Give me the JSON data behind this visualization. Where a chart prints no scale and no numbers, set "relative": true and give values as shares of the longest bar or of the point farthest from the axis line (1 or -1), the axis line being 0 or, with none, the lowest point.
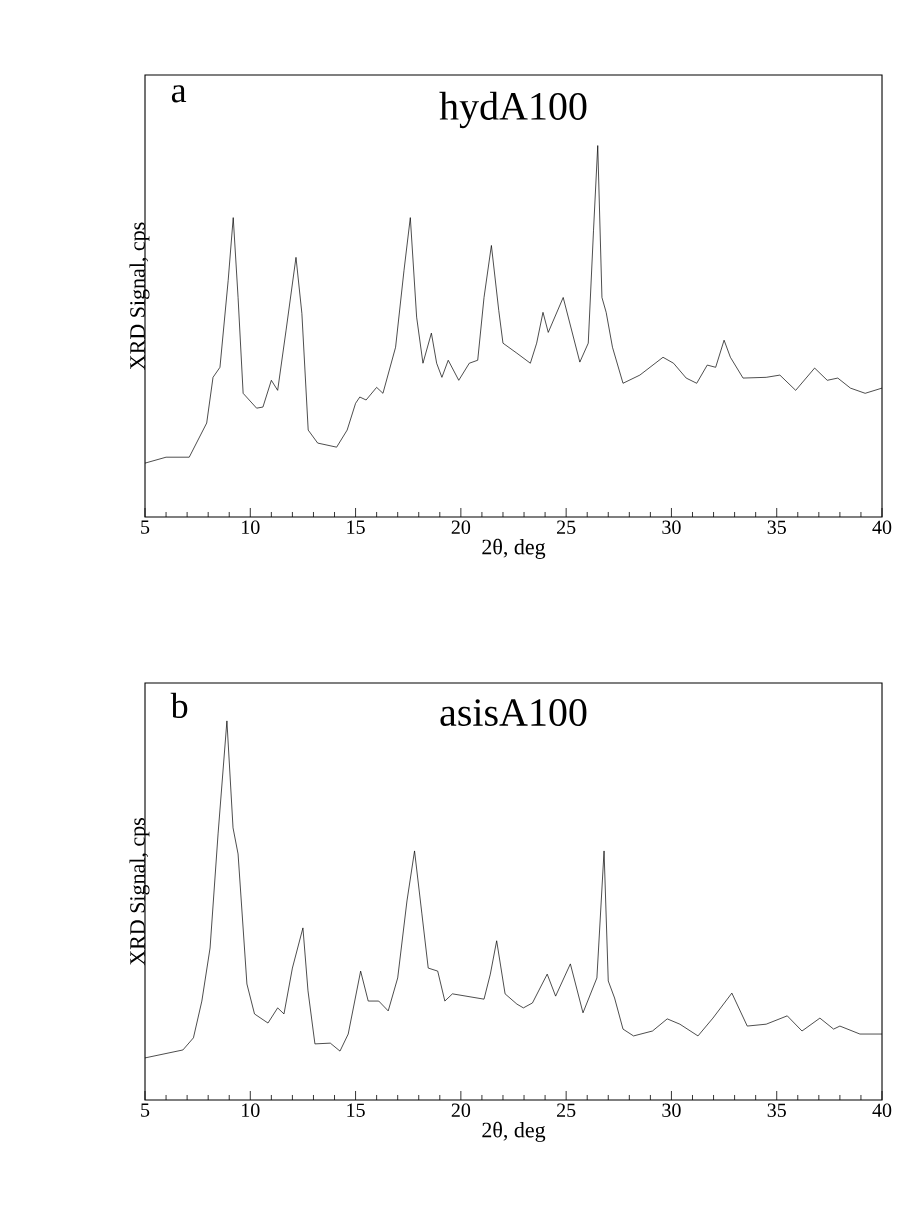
{
  "chart_data": [
    {
      "type": "line",
      "title": "hydA100",
      "xlabel": "2θ, deg",
      "ylabel": "XRD Signal, cps",
      "annotations": [
        "a"
      ],
      "relative": true,
      "color": "#000000",
      "xlim": [
        5,
        40
      ],
      "xticks": [
        5,
        10,
        15,
        20,
        25,
        30,
        35,
        40
      ],
      "x": [
        5.0,
        6.0,
        7.1,
        7.93,
        8.23,
        8.56,
        8.95,
        9.19,
        9.42,
        9.66,
        10.3,
        10.6,
        11.0,
        11.3,
        11.7,
        12.17,
        12.45,
        12.75,
        13.2,
        14.1,
        14.6,
        15.0,
        15.2,
        15.5,
        16.0,
        16.3,
        16.9,
        17.3,
        17.6,
        17.9,
        18.2,
        18.6,
        18.85,
        19.1,
        19.4,
        19.9,
        20.4,
        20.8,
        21.1,
        21.45,
        21.8,
        22.0,
        22.66,
        23.3,
        23.6,
        23.9,
        24.15,
        24.86,
        25.65,
        26.05,
        26.3,
        26.5,
        26.7,
        26.9,
        27.2,
        27.7,
        28.5,
        29.6,
        30.1,
        30.7,
        31.2,
        31.7,
        32.1,
        32.5,
        32.8,
        33.4,
        34.5,
        35.15,
        35.9,
        36.8,
        37.4,
        37.9,
        38.5,
        39.2,
        40.0
      ],
      "values": [
        0.145,
        0.161,
        0.161,
        0.253,
        0.376,
        0.403,
        0.637,
        0.806,
        0.591,
        0.333,
        0.293,
        0.296,
        0.368,
        0.341,
        0.503,
        0.699,
        0.548,
        0.234,
        0.199,
        0.188,
        0.234,
        0.306,
        0.323,
        0.315,
        0.349,
        0.333,
        0.457,
        0.664,
        0.806,
        0.538,
        0.414,
        0.495,
        0.414,
        0.376,
        0.422,
        0.368,
        0.414,
        0.422,
        0.591,
        0.731,
        0.556,
        0.468,
        0.441,
        0.414,
        0.468,
        0.551,
        0.497,
        0.591,
        0.417,
        0.468,
        0.772,
        1.0,
        0.591,
        0.551,
        0.457,
        0.36,
        0.382,
        0.43,
        0.414,
        0.374,
        0.36,
        0.409,
        0.403,
        0.476,
        0.43,
        0.374,
        0.376,
        0.382,
        0.341,
        0.401,
        0.368,
        0.374,
        0.347,
        0.333,
        0.347
      ]
    },
    {
      "type": "line",
      "title": "asisA100",
      "xlabel": "2θ, deg",
      "ylabel": "XRD Signal, cps",
      "annotations": [
        "b"
      ],
      "relative": true,
      "color": "#000000",
      "xlim": [
        5,
        40
      ],
      "xticks": [
        5,
        10,
        15,
        20,
        25,
        30,
        35,
        40
      ],
      "x": [
        5.0,
        6.8,
        7.3,
        7.7,
        8.09,
        8.47,
        8.89,
        9.18,
        9.42,
        9.84,
        10.2,
        10.84,
        11.3,
        11.6,
        12.0,
        12.5,
        12.74,
        13.07,
        13.8,
        14.26,
        14.65,
        15.24,
        15.6,
        16.1,
        16.55,
        17.0,
        17.44,
        17.8,
        18.15,
        18.45,
        18.9,
        19.24,
        19.6,
        21.1,
        21.4,
        21.7,
        22.1,
        22.66,
        22.97,
        23.4,
        24.1,
        24.5,
        25.2,
        25.8,
        26.46,
        26.8,
        27.0,
        27.3,
        27.7,
        28.2,
        29.1,
        29.8,
        30.4,
        31.26,
        31.97,
        32.87,
        33.6,
        34.5,
        35.5,
        36.2,
        37.05,
        37.7,
        38.0,
        38.95,
        40.0
      ],
      "values": [
        0.111,
        0.132,
        0.164,
        0.261,
        0.401,
        0.702,
        1.0,
        0.718,
        0.649,
        0.306,
        0.227,
        0.203,
        0.243,
        0.227,
        0.348,
        0.454,
        0.288,
        0.148,
        0.15,
        0.129,
        0.174,
        0.34,
        0.261,
        0.261,
        0.235,
        0.322,
        0.525,
        0.657,
        0.491,
        0.348,
        0.34,
        0.261,
        0.28,
        0.266,
        0.332,
        0.42,
        0.28,
        0.253,
        0.243,
        0.256,
        0.332,
        0.274,
        0.359,
        0.23,
        0.322,
        0.657,
        0.314,
        0.269,
        0.187,
        0.169,
        0.182,
        0.214,
        0.2,
        0.169,
        0.216,
        0.282,
        0.195,
        0.2,
        0.222,
        0.182,
        0.216,
        0.187,
        0.195,
        0.174,
        0.174
      ]
    }
  ]
}
